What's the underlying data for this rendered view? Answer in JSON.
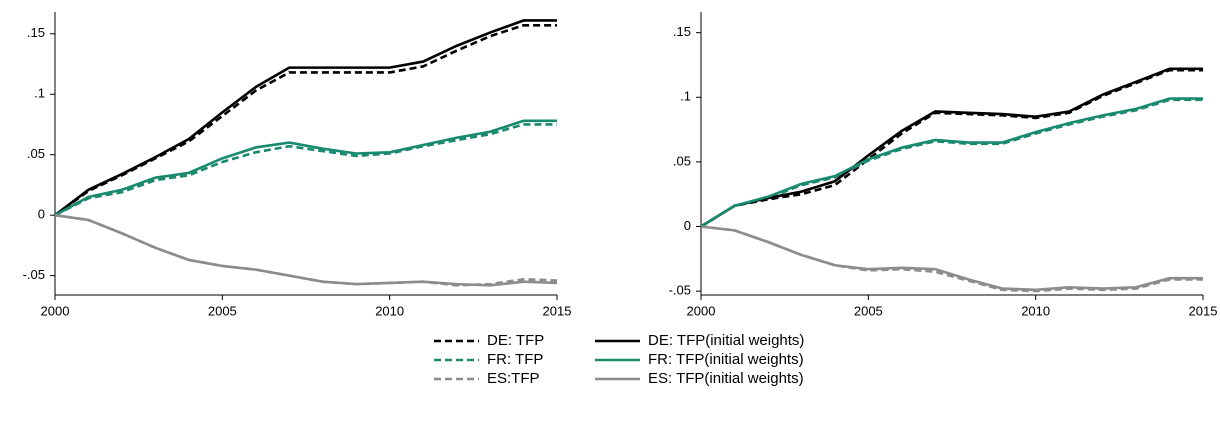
{
  "chart_data": [
    {
      "type": "line",
      "x": [
        2000,
        2001,
        2002,
        2003,
        2004,
        2005,
        2006,
        2007,
        2008,
        2009,
        2010,
        2011,
        2012,
        2013,
        2014,
        2015
      ],
      "xlim": [
        2000,
        2015
      ],
      "xticks": [
        2000,
        2005,
        2010,
        2015
      ],
      "ylim": [
        -0.066,
        0.168
      ],
      "yticks": [
        {
          "value": -0.05,
          "label": "-.05"
        },
        0,
        {
          "value": 0.05,
          "label": ".05"
        },
        {
          "value": 0.1,
          "label": ".1"
        },
        {
          "value": 0.15,
          "label": ".15"
        }
      ],
      "series": [
        {
          "name": "DE: TFP",
          "color": "#000000",
          "dashed": true,
          "values": [
            0,
            0.02,
            0.033,
            0.047,
            0.061,
            0.082,
            0.103,
            0.118,
            0.118,
            0.118,
            0.118,
            0.123,
            0.136,
            0.148,
            0.157,
            0.157
          ]
        },
        {
          "name": "FR: TFP",
          "color": "#1a8a6e",
          "dashed": true,
          "values": [
            0,
            0.014,
            0.019,
            0.029,
            0.033,
            0.044,
            0.052,
            0.057,
            0.053,
            0.049,
            0.051,
            0.057,
            0.062,
            0.067,
            0.075,
            0.075
          ]
        },
        {
          "name": "ES:TFP",
          "color": "#8c8c8c",
          "dashed": true,
          "values": [
            0,
            -0.004,
            -0.015,
            -0.027,
            -0.037,
            -0.042,
            -0.045,
            -0.05,
            -0.055,
            -0.057,
            -0.056,
            -0.055,
            -0.058,
            -0.057,
            -0.053,
            -0.054
          ]
        },
        {
          "name": "DE: TFP(initial weights)",
          "color": "#000000",
          "dashed": false,
          "values": [
            0,
            0.021,
            0.034,
            0.048,
            0.063,
            0.085,
            0.106,
            0.122,
            0.122,
            0.122,
            0.122,
            0.127,
            0.14,
            0.151,
            0.161,
            0.161
          ]
        },
        {
          "name": "FR: TFP(initial weights)",
          "color": "#1a8a6e",
          "dashed": false,
          "values": [
            0,
            0.015,
            0.021,
            0.031,
            0.035,
            0.047,
            0.056,
            0.06,
            0.055,
            0.051,
            0.052,
            0.058,
            0.064,
            0.069,
            0.078,
            0.078
          ]
        },
        {
          "name": "ES: TFP(initial weights)",
          "color": "#8c8c8c",
          "dashed": false,
          "values": [
            0,
            -0.004,
            -0.015,
            -0.027,
            -0.037,
            -0.042,
            -0.045,
            -0.05,
            -0.055,
            -0.057,
            -0.056,
            -0.055,
            -0.057,
            -0.058,
            -0.055,
            -0.056
          ]
        }
      ]
    },
    {
      "type": "line",
      "x": [
        2000,
        2001,
        2002,
        2003,
        2004,
        2005,
        2006,
        2007,
        2008,
        2009,
        2010,
        2011,
        2012,
        2013,
        2014,
        2015
      ],
      "xlim": [
        2000,
        2015
      ],
      "xticks": [
        2000,
        2005,
        2010,
        2015
      ],
      "ylim": [
        -0.053,
        0.166
      ],
      "yticks": [
        {
          "value": -0.05,
          "label": "-.05"
        },
        0,
        {
          "value": 0.05,
          "label": ".05"
        },
        {
          "value": 0.1,
          "label": ".1"
        },
        {
          "value": 0.15,
          "label": ".15"
        }
      ],
      "series": [
        {
          "color": "#000000",
          "dashed": true,
          "values": [
            0,
            0.016,
            0.021,
            0.025,
            0.032,
            0.052,
            0.072,
            0.088,
            0.087,
            0.086,
            0.084,
            0.088,
            0.101,
            0.111,
            0.121,
            0.121
          ]
        },
        {
          "color": "#1a8a6e",
          "dashed": true,
          "values": [
            0,
            0.016,
            0.022,
            0.032,
            0.038,
            0.051,
            0.06,
            0.066,
            0.064,
            0.064,
            0.072,
            0.079,
            0.085,
            0.09,
            0.098,
            0.098
          ]
        },
        {
          "color": "#8c8c8c",
          "dashed": true,
          "values": [
            0,
            -0.003,
            -0.012,
            -0.022,
            -0.03,
            -0.034,
            -0.033,
            -0.035,
            -0.042,
            -0.049,
            -0.05,
            -0.048,
            -0.049,
            -0.048,
            -0.041,
            -0.041
          ]
        },
        {
          "color": "#000000",
          "dashed": false,
          "values": [
            0,
            0.016,
            0.022,
            0.027,
            0.035,
            0.055,
            0.074,
            0.089,
            0.088,
            0.087,
            0.085,
            0.089,
            0.102,
            0.112,
            0.122,
            0.122
          ]
        },
        {
          "color": "#1a8a6e",
          "dashed": false,
          "values": [
            0,
            0.016,
            0.023,
            0.033,
            0.039,
            0.052,
            0.061,
            0.067,
            0.065,
            0.065,
            0.073,
            0.08,
            0.086,
            0.091,
            0.099,
            0.099
          ]
        },
        {
          "color": "#8c8c8c",
          "dashed": false,
          "values": [
            0,
            -0.003,
            -0.012,
            -0.022,
            -0.03,
            -0.033,
            -0.032,
            -0.033,
            -0.041,
            -0.048,
            -0.049,
            -0.047,
            -0.048,
            -0.047,
            -0.04,
            -0.04
          ]
        }
      ]
    }
  ]
}
